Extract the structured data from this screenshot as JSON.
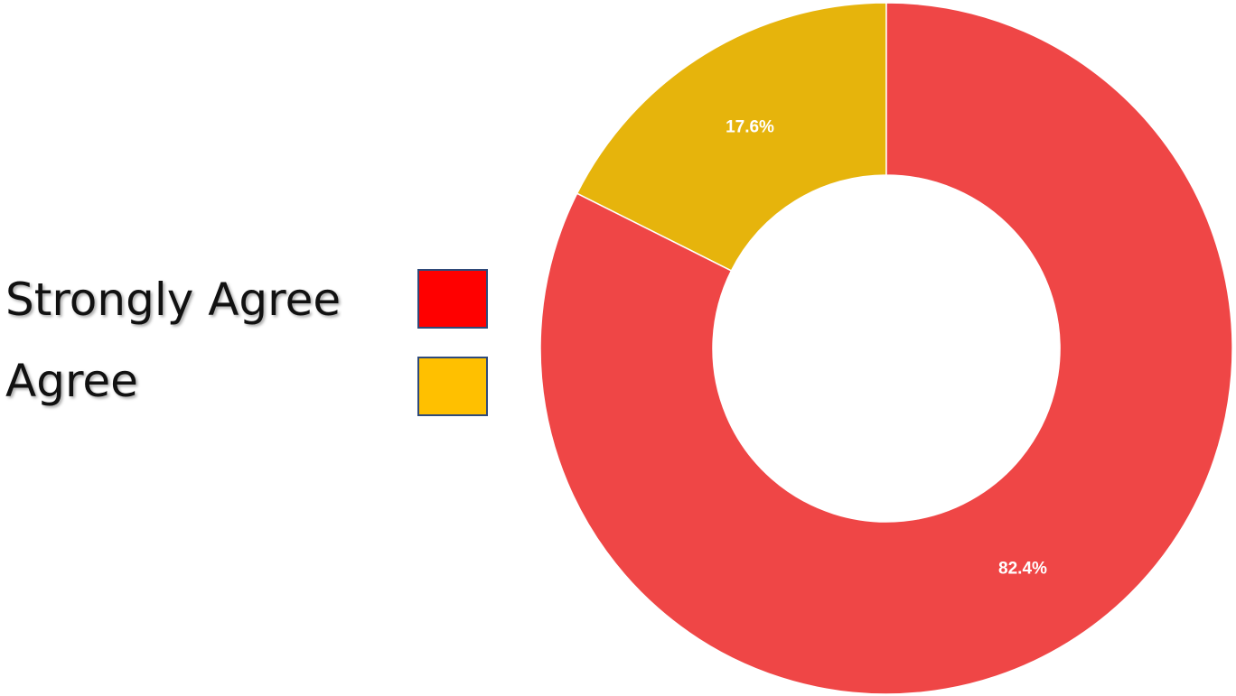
{
  "legend": {
    "items": [
      {
        "label": "Strongly Agree",
        "color": "#ff0000"
      },
      {
        "label": "Agree",
        "color": "#ffc000"
      }
    ]
  },
  "chart_data": {
    "type": "pie",
    "donut": true,
    "title": "",
    "legend_position": "left",
    "slices": [
      {
        "label": "Agree",
        "value": 17.6,
        "display": "17.6%",
        "color": "#e6b40c"
      },
      {
        "label": "Strongly Agree",
        "value": 82.4,
        "display": "82.4%",
        "color": "#ef4646"
      }
    ]
  }
}
